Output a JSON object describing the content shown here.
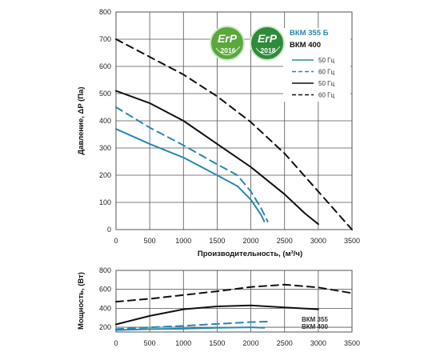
{
  "chart_data": [
    {
      "type": "line",
      "ylabel": "Давление, ΔP (Па)",
      "xlabel": "Производительность, (м³/ч)",
      "xlim": [
        0,
        3500
      ],
      "ylim": [
        0,
        800
      ],
      "xticks": [
        "0",
        "500",
        "1000",
        "1500",
        "2000",
        "2500",
        "3000",
        "3500"
      ],
      "yticks": [
        "0",
        "100",
        "200",
        "300",
        "400",
        "500",
        "600",
        "700",
        "800"
      ],
      "grid": true,
      "series": [
        {
          "name": "50 Гц",
          "model": "ВКМ 355 Б",
          "color": "#2a87b0",
          "dash": false,
          "x": [
            0,
            500,
            1000,
            1500,
            1800,
            2000,
            2150,
            2200
          ],
          "y": [
            370,
            315,
            265,
            200,
            160,
            110,
            55,
            30
          ]
        },
        {
          "name": "60 Гц",
          "model": "ВКМ 355 Б",
          "color": "#2a87b0",
          "dash": true,
          "x": [
            0,
            500,
            1000,
            1500,
            1800,
            2000,
            2150,
            2250
          ],
          "y": [
            450,
            375,
            310,
            240,
            200,
            140,
            80,
            30
          ]
        },
        {
          "name": "50 Гц",
          "model": "ВКМ 400",
          "color": "#111111",
          "dash": false,
          "x": [
            0,
            500,
            1000,
            1500,
            2000,
            2500,
            2800,
            3000
          ],
          "y": [
            510,
            465,
            400,
            315,
            230,
            130,
            60,
            20
          ]
        },
        {
          "name": "60 Гц",
          "model": "ВКМ 400",
          "color": "#111111",
          "dash": true,
          "x": [
            0,
            500,
            1000,
            1500,
            2000,
            2500,
            3000,
            3250,
            3500
          ],
          "y": [
            700,
            635,
            570,
            490,
            395,
            280,
            140,
            70,
            0
          ]
        }
      ]
    },
    {
      "type": "line",
      "ylabel": "Мощность, (Вт)",
      "xlim": [
        0,
        3500
      ],
      "ylim": [
        150,
        800
      ],
      "xticks": [
        "0",
        "500",
        "1000",
        "1500",
        "2000",
        "2500",
        "3000",
        "3500"
      ],
      "yticks": [
        "200",
        "400",
        "600",
        "800"
      ],
      "grid": true,
      "series": [
        {
          "name": "50 Гц",
          "model": "ВКМ 355 Б",
          "color": "#2a87b0",
          "dash": false,
          "x": [
            0,
            500,
            1000,
            1500,
            2000,
            2200
          ],
          "y": [
            170,
            180,
            185,
            195,
            200,
            195
          ]
        },
        {
          "name": "60 Гц",
          "model": "ВКМ 355 Б",
          "color": "#2a87b0",
          "dash": true,
          "x": [
            0,
            500,
            1000,
            1500,
            2000,
            2250
          ],
          "y": [
            180,
            200,
            215,
            235,
            255,
            260
          ]
        },
        {
          "name": "50 Гц",
          "model": "ВКМ 400",
          "color": "#111111",
          "dash": false,
          "x": [
            0,
            500,
            1000,
            1500,
            2000,
            2500,
            3000
          ],
          "y": [
            230,
            320,
            390,
            420,
            430,
            410,
            390
          ]
        },
        {
          "name": "60 Гц",
          "model": "ВКМ 400",
          "color": "#111111",
          "dash": true,
          "x": [
            0,
            500,
            1000,
            1500,
            2000,
            2500,
            3000,
            3500
          ],
          "y": [
            470,
            500,
            540,
            580,
            625,
            650,
            620,
            560
          ]
        }
      ]
    }
  ],
  "legend": {
    "models": [
      {
        "label": "ВКМ 355 Б",
        "color": "#2a87b0"
      },
      {
        "label": "ВКМ 400",
        "color": "#111111"
      }
    ],
    "entries": [
      {
        "label": "50 Гц",
        "color": "#2a87b0",
        "dash": false
      },
      {
        "label": "60 Гц",
        "color": "#2a87b0",
        "dash": true
      },
      {
        "label": "50 Гц",
        "color": "#111111",
        "dash": false
      },
      {
        "label": "60 Гц",
        "color": "#111111",
        "dash": true
      }
    ],
    "small_models": [
      {
        "label": "ВКМ 355",
        "color": "#2a87b0"
      },
      {
        "label": "ВКМ 400",
        "color": "#111111"
      }
    ]
  },
  "badges": [
    {
      "text": "ErP",
      "year": "2016",
      "color": "#5aa83c",
      "icon": "erp-leaf-icon"
    },
    {
      "text": "ErP",
      "year": "2018",
      "color": "#2e8b3a",
      "icon": "erp-leaf-icon"
    }
  ]
}
